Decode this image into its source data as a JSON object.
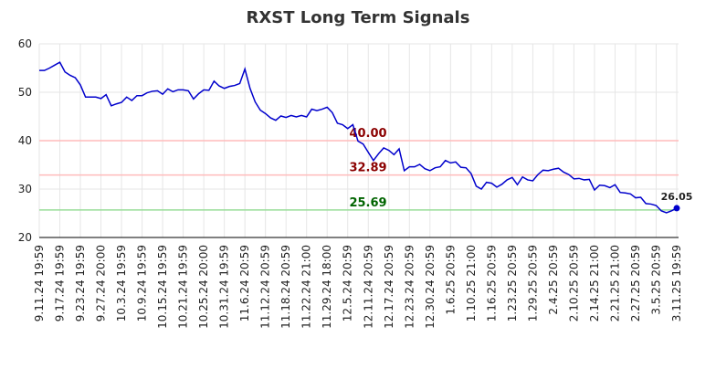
{
  "chart_data": {
    "type": "line",
    "title": "RXST Long Term Signals",
    "categories": [
      "9.11.24 19:59",
      null,
      null,
      null,
      "9.17.24 19:59",
      null,
      null,
      null,
      "9.23.24 19:59",
      null,
      null,
      null,
      "9.27.24 20:00",
      null,
      null,
      null,
      "10.3.24 19:59",
      null,
      null,
      null,
      "10.9.24 19:59",
      null,
      null,
      null,
      "10.15.24 19:59",
      null,
      null,
      null,
      "10.21.24 19:59",
      null,
      null,
      null,
      "10.25.24 20:00",
      null,
      null,
      null,
      "10.31.24 19:59",
      null,
      null,
      null,
      "11.6.24 20:59",
      null,
      null,
      null,
      "11.12.24 20:59",
      null,
      null,
      null,
      "11.18.24 20:59",
      null,
      null,
      null,
      "11.22.24 21:00",
      null,
      null,
      null,
      "11.29.24 18:00",
      null,
      null,
      null,
      "12.5.24 20:59",
      null,
      null,
      null,
      "12.11.24 20:59",
      null,
      null,
      null,
      "12.17.24 20:59",
      null,
      null,
      null,
      "12.23.24 20:59",
      null,
      null,
      null,
      "12.30.24 20:59",
      null,
      null,
      null,
      "1.6.25 20:59",
      null,
      null,
      null,
      "1.10.25 21:00",
      null,
      null,
      null,
      "1.16.25 20:59",
      null,
      null,
      null,
      "1.23.25 20:59",
      null,
      null,
      null,
      "1.29.25 20:59",
      null,
      null,
      null,
      "2.4.25 20:59",
      null,
      null,
      null,
      "2.10.25 20:59",
      null,
      null,
      null,
      "2.14.25 21:00",
      null,
      null,
      null,
      "2.21.25 21:00",
      null,
      null,
      null,
      "2.27.25 20:59",
      null,
      null,
      null,
      "3.5.25 20:59",
      null,
      null,
      null,
      "3.11.25 19:59"
    ],
    "series": [
      {
        "color": "#0000cc",
        "values": [
          54.5,
          54.5,
          55,
          55.6,
          56.2,
          54.2,
          53.5,
          53,
          51.5,
          49,
          49,
          49,
          48.7,
          49.5,
          47.2,
          47.6,
          47.9,
          49,
          48.3,
          49.3,
          49.3,
          49.9,
          50.2,
          50.3,
          49.6,
          50.7,
          50.1,
          50.5,
          50.5,
          50.3,
          48.6,
          49.7,
          50.5,
          50.4,
          52.3,
          51.3,
          50.8,
          51.2,
          51.4,
          51.8,
          54.8,
          50.8,
          48,
          46.3,
          45.6,
          44.7,
          44.2,
          45.1,
          44.8,
          45.2,
          44.9,
          45.2,
          44.9,
          46.5,
          46.2,
          46.5,
          46.9,
          45.8,
          43.6,
          43.3,
          42.5,
          43.3,
          39.9,
          39.3,
          37.6,
          35.9,
          37.3,
          38.5,
          38,
          37.1,
          38.3,
          33.8,
          34.6,
          34.6,
          35.1,
          34.2,
          33.8,
          34.4,
          34.6,
          35.9,
          35.4,
          35.6,
          34.5,
          34.4,
          33.2,
          30.6,
          30,
          31.4,
          31.2,
          30.4,
          31,
          31.9,
          32.4,
          30.9,
          32.5,
          31.9,
          31.7,
          33,
          33.9,
          33.8,
          34.1,
          34.3,
          33.5,
          33,
          32.1,
          32.2,
          31.9,
          32,
          29.8,
          30.8,
          30.7,
          30.3,
          30.9,
          29.3,
          29.2,
          29,
          28.2,
          28.3,
          27,
          26.9,
          26.6,
          25.5,
          25.1,
          25.5,
          26.05
        ]
      }
    ],
    "hlines": [
      {
        "value": 40,
        "label": "40.00",
        "color": "#ffbbbb",
        "label_color": "#8b0000"
      },
      {
        "value": 32.89,
        "label": "32.89",
        "color": "#ffbbbb",
        "label_color": "#8b0000"
      },
      {
        "value": 25.69,
        "label": "25.69",
        "color": "#99dd99",
        "label_color": "#006400"
      }
    ],
    "ylim": [
      20,
      60
    ],
    "yticks": [
      20,
      30,
      40,
      50,
      60
    ],
    "grid": true
  }
}
